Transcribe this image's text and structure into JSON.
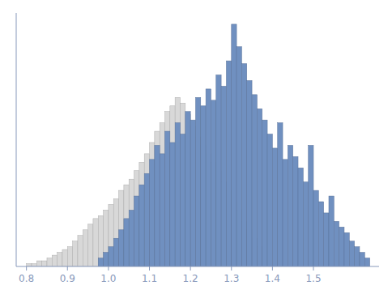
{
  "chart_data": {
    "type": "histogram",
    "series": [
      {
        "color": "#d8d8d8",
        "bins": [
          0.8,
          0.8125,
          0.825,
          0.8375,
          0.85,
          0.8625,
          0.875,
          0.8875,
          0.9,
          0.9125,
          0.925,
          0.9375,
          0.95,
          0.9625,
          0.975,
          0.9875,
          1.0,
          1.0125,
          1.025,
          1.0375,
          1.05,
          1.0625,
          1.075,
          1.0875,
          1.1,
          1.1125,
          1.125,
          1.1375,
          1.15,
          1.1625,
          1.175,
          1.1875,
          1.2,
          1.2125,
          1.225,
          1.2375,
          1.25,
          1.2625,
          1.275,
          1.2875,
          1.3,
          1.3125,
          1.325,
          1.3375,
          1.35,
          1.3625,
          1.375
        ],
        "values": [
          1,
          1,
          2,
          2,
          3,
          4,
          5,
          6,
          7,
          9,
          11,
          13,
          15,
          17,
          18,
          20,
          22,
          24,
          27,
          29,
          31,
          34,
          37,
          40,
          44,
          48,
          51,
          55,
          57,
          60,
          58,
          54,
          50,
          46,
          43,
          40,
          37,
          34,
          30,
          27,
          23,
          20,
          16,
          13,
          10,
          7
        ]
      },
      {
        "color": "#7090c0",
        "bins": [
          0.975,
          0.9875,
          1.0,
          1.0125,
          1.025,
          1.0375,
          1.05,
          1.0625,
          1.075,
          1.0875,
          1.1,
          1.1125,
          1.125,
          1.1375,
          1.15,
          1.1625,
          1.175,
          1.1875,
          1.2,
          1.2125,
          1.225,
          1.2375,
          1.25,
          1.2625,
          1.275,
          1.2875,
          1.3,
          1.3125,
          1.325,
          1.3375,
          1.35,
          1.3625,
          1.375,
          1.3875,
          1.4,
          1.4125,
          1.425,
          1.4375,
          1.45,
          1.4625,
          1.475,
          1.4875,
          1.5,
          1.5125,
          1.525,
          1.5375,
          1.55,
          1.5625,
          1.575,
          1.5875,
          1.6,
          1.6125,
          1.625,
          1.6375
        ],
        "values": [
          3,
          5,
          7,
          10,
          13,
          17,
          20,
          25,
          29,
          33,
          38,
          43,
          40,
          48,
          44,
          51,
          47,
          55,
          52,
          60,
          57,
          63,
          59,
          68,
          64,
          73,
          86,
          78,
          72,
          66,
          61,
          56,
          52,
          47,
          42,
          51,
          38,
          43,
          39,
          35,
          30,
          43,
          27,
          23,
          19,
          25,
          16,
          14,
          12,
          9,
          7,
          5,
          3
        ]
      }
    ],
    "xlim": [
      0.775,
      1.66
    ],
    "xticks": [
      0.8,
      0.9,
      {
        "value": 1.0,
        "label": "1.0"
      },
      1.1,
      1.2,
      1.3,
      1.4,
      1.5
    ],
    "ylim": [
      0,
      90
    ],
    "tick_labels": "x"
  }
}
